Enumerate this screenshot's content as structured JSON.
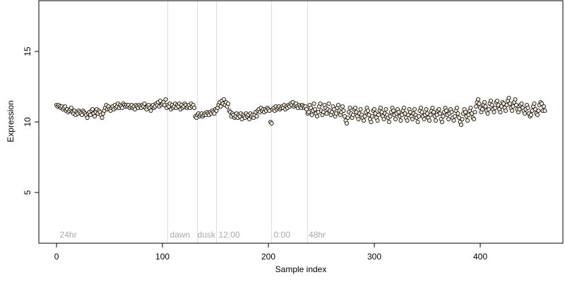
{
  "chart_data": {
    "type": "scatter",
    "xlabel": "Sample index",
    "ylabel": "Expression",
    "xlim": [
      -16.7,
      478
    ],
    "ylim": [
      1.4,
      18.6
    ],
    "xticks": [
      0,
      100,
      200,
      300,
      400
    ],
    "yticks": [
      5,
      10,
      15
    ],
    "color": "#000000",
    "vlines": [
      105,
      133,
      151,
      203,
      237
    ],
    "annotations": [
      {
        "text": "24hr",
        "x": 3
      },
      {
        "text": "dawn",
        "x": 107
      },
      {
        "text": "dusk",
        "x": 133
      },
      {
        "text": "12:00",
        "x": 153
      },
      {
        "text": "0:00",
        "x": 205
      },
      {
        "text": "48hr",
        "x": 238
      }
    ],
    "x": [
      0,
      1,
      2,
      3,
      4,
      5,
      6,
      7,
      8,
      9,
      10,
      11,
      12,
      13,
      14,
      15,
      16,
      17,
      18,
      19,
      20,
      21,
      22,
      23,
      24,
      25,
      26,
      27,
      28,
      29,
      30,
      31,
      32,
      33,
      34,
      35,
      36,
      37,
      38,
      39,
      40,
      41,
      42,
      43,
      44,
      45,
      46,
      47,
      48,
      49,
      50,
      51,
      52,
      53,
      54,
      55,
      56,
      57,
      58,
      59,
      60,
      61,
      62,
      63,
      64,
      65,
      66,
      67,
      68,
      69,
      70,
      71,
      72,
      73,
      74,
      75,
      76,
      77,
      78,
      79,
      80,
      81,
      82,
      83,
      84,
      85,
      86,
      87,
      88,
      89,
      90,
      91,
      92,
      93,
      94,
      95,
      96,
      97,
      98,
      99,
      100,
      101,
      102,
      103,
      104,
      105,
      106,
      107,
      108,
      109,
      110,
      111,
      112,
      113,
      114,
      115,
      116,
      117,
      118,
      119,
      120,
      121,
      122,
      123,
      124,
      125,
      126,
      127,
      128,
      129,
      130,
      131,
      132,
      133,
      134,
      135,
      136,
      137,
      138,
      139,
      140,
      141,
      142,
      143,
      144,
      145,
      146,
      147,
      148,
      149,
      150,
      151,
      152,
      153,
      154,
      155,
      156,
      157,
      158,
      159,
      160,
      161,
      162,
      163,
      164,
      165,
      166,
      167,
      168,
      169,
      170,
      171,
      172,
      173,
      174,
      175,
      176,
      177,
      178,
      179,
      180,
      181,
      182,
      183,
      184,
      185,
      186,
      187,
      188,
      189,
      190,
      191,
      192,
      193,
      194,
      195,
      196,
      197,
      198,
      199,
      200,
      201,
      202,
      203,
      204,
      205,
      206,
      207,
      208,
      209,
      210,
      211,
      212,
      213,
      214,
      215,
      216,
      217,
      218,
      219,
      220,
      221,
      222,
      223,
      224,
      225,
      226,
      227,
      228,
      229,
      230,
      231,
      232,
      233,
      234,
      235,
      236,
      237,
      238,
      239,
      240,
      241,
      242,
      243,
      244,
      245,
      246,
      247,
      248,
      249,
      250,
      251,
      252,
      253,
      254,
      255,
      256,
      257,
      258,
      259,
      260,
      261,
      262,
      263,
      264,
      265,
      266,
      267,
      268,
      269,
      270,
      271,
      272,
      273,
      274,
      275,
      276,
      277,
      278,
      279,
      280,
      281,
      282,
      283,
      284,
      285,
      286,
      287,
      288,
      289,
      290,
      291,
      292,
      293,
      294,
      295,
      296,
      297,
      298,
      299,
      300,
      301,
      302,
      303,
      304,
      305,
      306,
      307,
      308,
      309,
      310,
      311,
      312,
      313,
      314,
      315,
      316,
      317,
      318,
      319,
      320,
      321,
      322,
      323,
      324,
      325,
      326,
      327,
      328,
      329,
      330,
      331,
      332,
      333,
      334,
      335,
      336,
      337,
      338,
      339,
      340,
      341,
      342,
      343,
      344,
      345,
      346,
      347,
      348,
      349,
      350,
      351,
      352,
      353,
      354,
      355,
      356,
      357,
      358,
      359,
      360,
      361,
      362,
      363,
      364,
      365,
      366,
      367,
      368,
      369,
      370,
      371,
      372,
      373,
      374,
      375,
      376,
      377,
      378,
      379,
      380,
      381,
      382,
      383,
      384,
      385,
      386,
      387,
      388,
      389,
      390,
      391,
      392,
      393,
      394,
      395,
      396,
      397,
      398,
      399,
      400,
      401,
      402,
      403,
      404,
      405,
      406,
      407,
      408,
      409,
      410,
      411,
      412,
      413,
      414,
      415,
      416,
      417,
      418,
      419,
      420,
      421,
      422,
      423,
      424,
      425,
      426,
      427,
      428,
      429,
      430,
      431,
      432,
      433,
      434,
      435,
      436,
      437,
      438,
      439,
      440,
      441,
      442,
      443,
      444,
      445,
      446,
      447,
      448,
      449,
      450,
      451,
      452,
      453,
      454,
      455,
      456,
      457,
      458,
      459,
      460,
      461
    ],
    "values": [
      11.2,
      11.1,
      11.2,
      11.1,
      11.0,
      11.1,
      10.9,
      11.0,
      11.1,
      10.8,
      10.9,
      10.7,
      10.8,
      10.9,
      11.0,
      10.7,
      10.6,
      10.8,
      10.5,
      10.7,
      10.6,
      10.8,
      10.7,
      10.6,
      10.5,
      10.8,
      10.7,
      10.6,
      10.5,
      10.3,
      10.6,
      10.7,
      10.5,
      10.8,
      10.9,
      10.6,
      10.4,
      10.7,
      10.9,
      10.6,
      10.8,
      10.7,
      10.5,
      10.3,
      10.6,
      10.8,
      11.0,
      11.2,
      10.9,
      11.1,
      10.9,
      10.8,
      11.0,
      11.1,
      10.9,
      11.2,
      11.0,
      11.1,
      11.3,
      11.0,
      11.2,
      11.1,
      11.0,
      11.3,
      11.2,
      11.1,
      11.2,
      11.1,
      11.2,
      11.0,
      11.1,
      11.2,
      11.0,
      11.1,
      10.9,
      11.2,
      11.1,
      11.0,
      11.2,
      11.1,
      11.0,
      11.2,
      11.1,
      11.3,
      11.0,
      10.9,
      11.1,
      11.2,
      11.0,
      10.8,
      11.1,
      11.2,
      11.0,
      11.1,
      11.3,
      11.2,
      11.4,
      11.1,
      11.5,
      11.2,
      11.3,
      11.4,
      11.2,
      11.6,
      11.0,
      11.2,
      11.1,
      11.3,
      10.9,
      11.2,
      11.0,
      11.1,
      11.3,
      11.0,
      11.2,
      11.1,
      11.3,
      10.9,
      11.2,
      11.0,
      11.1,
      11.3,
      11.2,
      11.0,
      11.1,
      11.2,
      11.0,
      11.3,
      11.1,
      11.2,
      11.0,
      10.4,
      10.3,
      10.5,
      10.6,
      10.4,
      10.5,
      10.6,
      10.4,
      10.5,
      10.6,
      10.5,
      10.7,
      10.6,
      10.5,
      10.7,
      10.6,
      10.8,
      10.7,
      10.6,
      10.9,
      10.8,
      11.0,
      11.2,
      11.4,
      11.1,
      11.5,
      11.3,
      11.6,
      11.2,
      11.4,
      11.1,
      11.3,
      10.8,
      10.7,
      10.4,
      10.6,
      10.5,
      10.3,
      10.4,
      10.6,
      10.3,
      10.5,
      10.4,
      10.6,
      10.2,
      10.5,
      10.4,
      10.3,
      10.6,
      10.4,
      10.5,
      10.2,
      10.6,
      10.4,
      10.5,
      10.3,
      10.5,
      10.7,
      10.4,
      10.8,
      10.9,
      10.7,
      11.0,
      10.8,
      10.9,
      10.7,
      10.9,
      10.8,
      11.0,
      10.9,
      10.8,
      10.0,
      9.9,
      10.9,
      11.0,
      10.8,
      11.1,
      10.9,
      11.0,
      11.1,
      10.9,
      11.0,
      11.1,
      11.0,
      11.2,
      10.9,
      11.1,
      11.0,
      11.2,
      11.1,
      11.3,
      11.2,
      11.4,
      11.1,
      11.2,
      11.3,
      11.1,
      11.0,
      11.2,
      11.1,
      11.0,
      11.2,
      11.1,
      11.0,
      11.1,
      10.9,
      10.6,
      10.7,
      11.2,
      11.0,
      10.5,
      10.8,
      11.3,
      10.9,
      10.6,
      10.4,
      10.7,
      11.1,
      11.3,
      10.8,
      10.5,
      10.7,
      11.2,
      11.0,
      10.6,
      10.9,
      11.3,
      10.8,
      10.5,
      10.7,
      11.1,
      10.9,
      10.4,
      10.6,
      11.0,
      11.2,
      10.8,
      10.5,
      10.7,
      11.1,
      10.8,
      10.4,
      10.1,
      9.9,
      10.3,
      10.7,
      11.0,
      10.6,
      10.3,
      10.5,
      10.9,
      11.0,
      10.7,
      10.4,
      10.2,
      10.6,
      10.9,
      10.5,
      10.3,
      10.1,
      10.4,
      10.7,
      11.0,
      10.8,
      10.5,
      10.2,
      10.0,
      10.4,
      10.8,
      10.9,
      10.6,
      10.3,
      10.1,
      10.5,
      10.8,
      11.0,
      10.7,
      10.4,
      10.2,
      10.6,
      10.9,
      10.5,
      10.3,
      10.0,
      10.4,
      10.7,
      11.0,
      10.8,
      10.5,
      10.2,
      10.6,
      10.9,
      10.7,
      10.4,
      10.1,
      10.5,
      10.8,
      11.0,
      10.6,
      10.3,
      10.1,
      10.5,
      10.9,
      10.7,
      10.4,
      10.2,
      10.6,
      10.9,
      10.5,
      10.3,
      10.0,
      10.4,
      10.8,
      11.0,
      10.7,
      10.4,
      10.2,
      10.5,
      10.9,
      10.6,
      10.3,
      10.1,
      10.5,
      10.8,
      11.0,
      10.7,
      10.4,
      10.1,
      10.5,
      10.8,
      10.9,
      10.6,
      10.2,
      10.0,
      10.4,
      10.7,
      11.0,
      10.8,
      10.5,
      10.2,
      10.6,
      10.9,
      10.7,
      10.3,
      10.1,
      10.4,
      10.8,
      11.0,
      10.6,
      10.3,
      10.0,
      9.8,
      10.2,
      10.6,
      10.9,
      10.7,
      10.4,
      10.1,
      10.5,
      10.8,
      11.0,
      10.6,
      10.3,
      10.2,
      10.7,
      11.1,
      11.4,
      11.6,
      11.3,
      11.0,
      10.7,
      10.9,
      11.2,
      11.4,
      11.1,
      10.8,
      10.6,
      10.9,
      11.3,
      11.5,
      11.2,
      10.9,
      10.7,
      11.0,
      11.4,
      11.5,
      11.2,
      10.9,
      10.7,
      11.1,
      11.4,
      11.3,
      11.0,
      10.8,
      11.2,
      11.5,
      11.7,
      11.3,
      11.0,
      10.8,
      11.1,
      11.4,
      11.6,
      11.2,
      10.9,
      10.7,
      10.9,
      11.2,
      11.3,
      11.0,
      10.8,
      10.6,
      10.9,
      11.2,
      11.0,
      10.6,
      10.4,
      10.5,
      10.8,
      11.1,
      11.3,
      10.9,
      10.6,
      10.5,
      10.8,
      11.2,
      11.4,
      11.3,
      10.8,
      11.1,
      10.8
    ]
  }
}
